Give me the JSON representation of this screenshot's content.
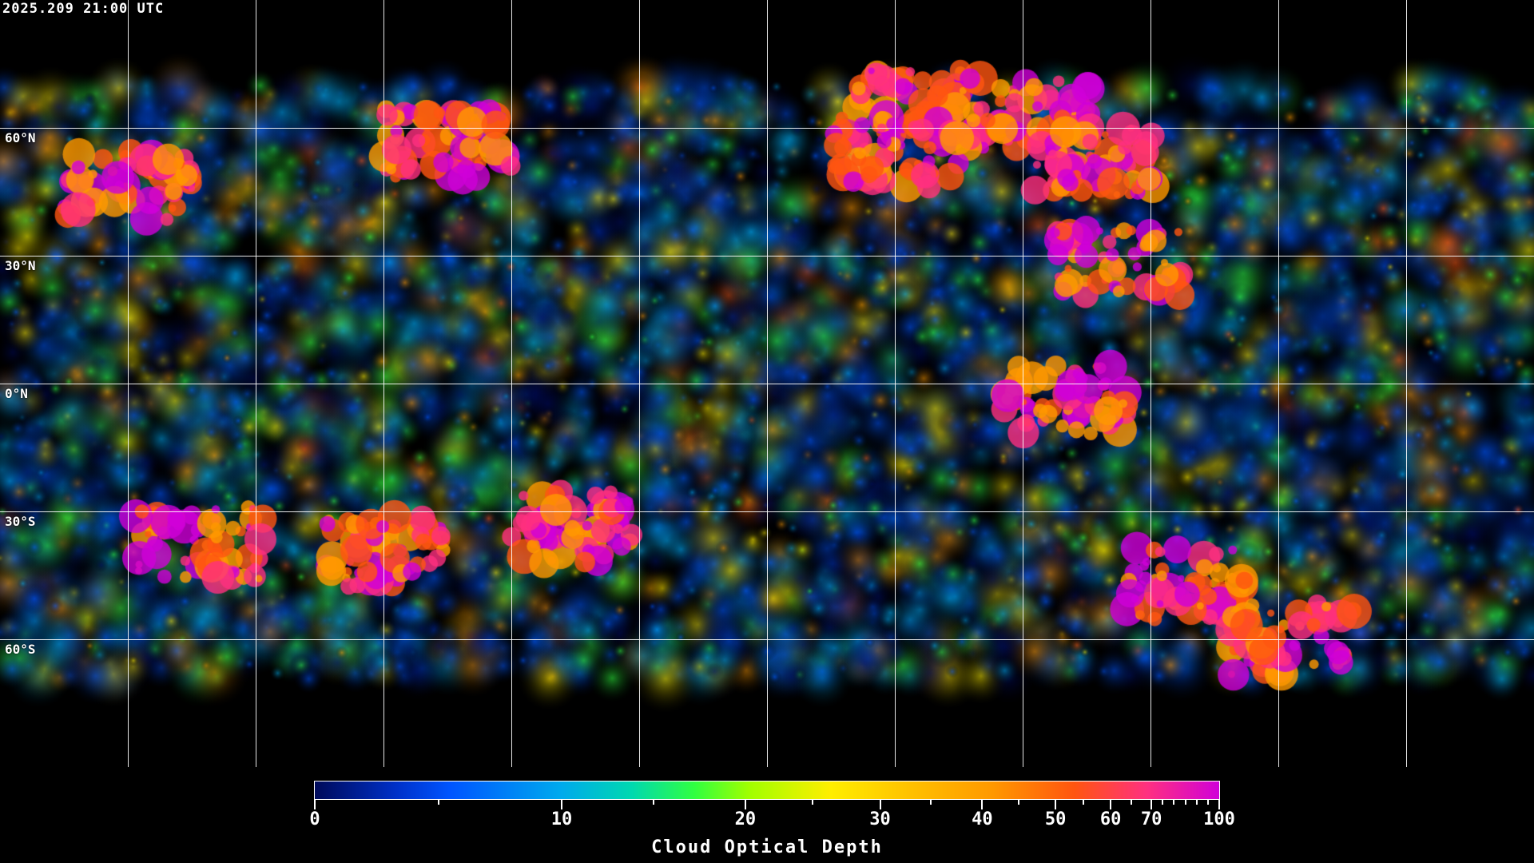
{
  "timestamp": "2025.209 21:00 UTC",
  "map": {
    "projection": "equirectangular",
    "grid_longitudes_deg": [
      -150,
      -120,
      -90,
      -60,
      -30,
      0,
      30,
      60,
      90,
      120,
      150
    ],
    "grid_latitudes_deg": [
      60,
      30,
      0,
      -30,
      -60
    ],
    "lat_labels": [
      "60°N",
      "30°N",
      "0°N",
      "30°S",
      "60°S"
    ]
  },
  "colorbar": {
    "title": "Cloud Optical Depth",
    "range": [
      0,
      100
    ],
    "tick_labels": [
      "0",
      "10",
      "20",
      "30",
      "40",
      "50",
      "60",
      "70",
      "100"
    ],
    "major_ticks": [
      0,
      10,
      20,
      30,
      40,
      50,
      60,
      70,
      100
    ],
    "minor_ticks": [
      5,
      15,
      25,
      35,
      45,
      55,
      65,
      75,
      80,
      85,
      90,
      95
    ],
    "colors": [
      "#000a5a",
      "#0055ff",
      "#00a8ee",
      "#30ff40",
      "#ffee00",
      "#ff9800",
      "#ff5510",
      "#ff3080",
      "#d000d8"
    ]
  }
}
